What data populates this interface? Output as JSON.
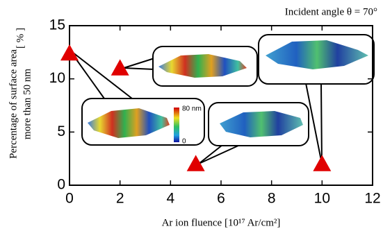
{
  "chart_data": {
    "type": "scatter",
    "title": "Incident angle θ = 70°",
    "xlabel": "Ar ion fluence [10¹⁷ Ar/cm²]",
    "ylabel": [
      "Percentage of surface area",
      "more than 50 nm",
      "[ % ]"
    ],
    "x": [
      0,
      2,
      5,
      10
    ],
    "values": [
      12.4,
      11.0,
      2.0,
      2.0
    ],
    "color": "#e00000",
    "marker": "triangle",
    "xlim": [
      0,
      12
    ],
    "xticks": [
      0,
      2,
      4,
      6,
      8,
      10,
      12
    ],
    "ylim": [
      0,
      15
    ],
    "yticks": [
      0,
      5,
      10,
      15
    ],
    "annotations": [
      "80 nm",
      "0"
    ]
  }
}
